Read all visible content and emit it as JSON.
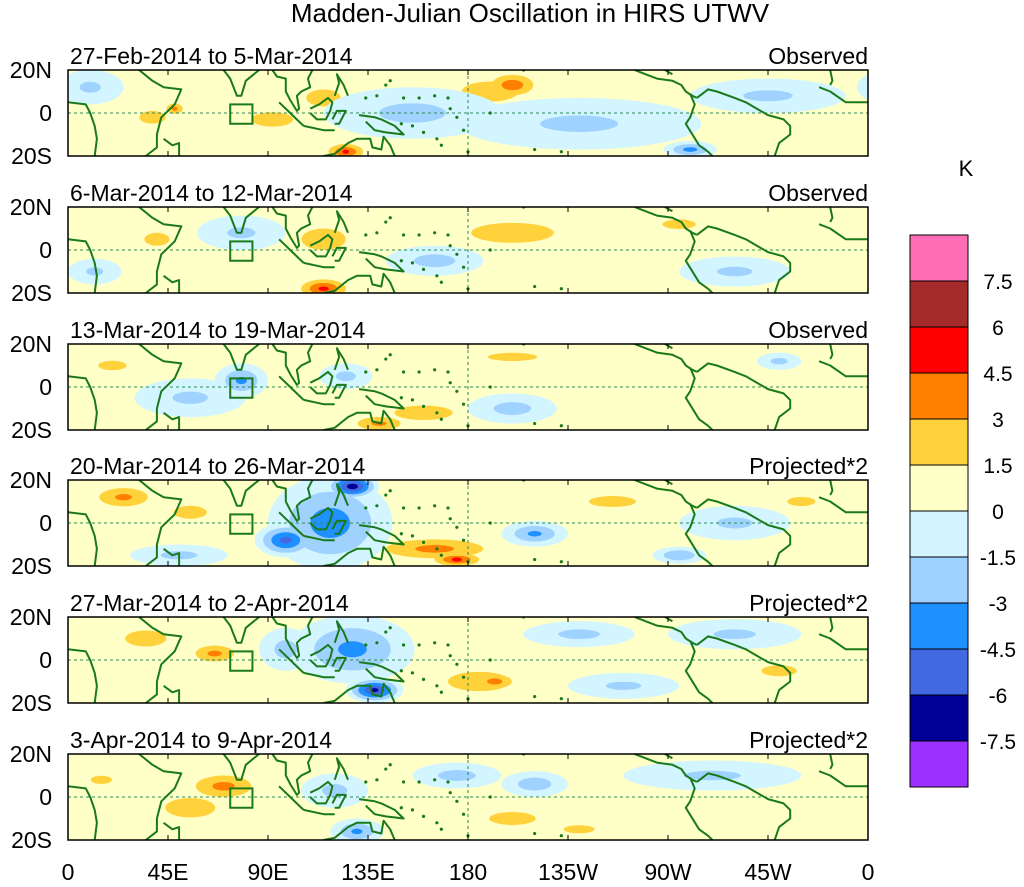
{
  "chart_data": {
    "type": "heatmap",
    "title": "Madden-Julian Oscillation in HIRS UTWV",
    "units": "K",
    "x_ticks": [
      "0",
      "45E",
      "90E",
      "135E",
      "180",
      "135W",
      "90W",
      "45W",
      "0"
    ],
    "y_ticks": [
      "20N",
      "0",
      "20S"
    ],
    "xlim": [
      0,
      360
    ],
    "ylim": [
      -20,
      20
    ],
    "colorbar": {
      "labels": [
        "7.5",
        "6",
        "4.5",
        "3",
        "1.5",
        "0",
        "-1.5",
        "-3",
        "-4.5",
        "-6",
        "-7.5"
      ],
      "colors": [
        "#ff6eb4",
        "#a52a2a",
        "#ff0000",
        "#ff7f00",
        "#ffd23c",
        "#ffffc8",
        "#d2f5ff",
        "#a0d2ff",
        "#1e90ff",
        "#4169e1",
        "#000096",
        "#9b30ff"
      ]
    },
    "panels": [
      {
        "period": "27-Feb-2014 to 5-Mar-2014",
        "kind": "Observed",
        "anomalies": [
          {
            "lon": 200,
            "lat": 13,
            "rlon": 14,
            "rlat": 7,
            "v": 4.0
          },
          {
            "lon": 190,
            "lat": 10,
            "rlon": 30,
            "rlat": 11,
            "v": 2.0
          },
          {
            "lon": 115,
            "lat": 7,
            "rlon": 14,
            "rlat": 7,
            "v": 2.8
          },
          {
            "lon": 125,
            "lat": -18,
            "rlon": 11,
            "rlat": 5,
            "v": 4.6
          },
          {
            "lon": 92,
            "lat": -3,
            "rlon": 22,
            "rlat": 8,
            "v": 2.0
          },
          {
            "lon": 38,
            "lat": -2,
            "rlon": 14,
            "rlat": 7,
            "v": 2.0
          },
          {
            "lon": 48,
            "lat": 2,
            "rlon": 6,
            "rlat": 4,
            "v": 3.2
          },
          {
            "lon": 155,
            "lat": 0,
            "rlon": 40,
            "rlat": 12,
            "v": -1.8
          },
          {
            "lon": 230,
            "lat": -5,
            "rlon": 55,
            "rlat": 12,
            "v": -1.6
          },
          {
            "lon": 280,
            "lat": -17,
            "rlon": 12,
            "rlat": 4,
            "v": -3.5
          },
          {
            "lon": 315,
            "lat": 8,
            "rlon": 35,
            "rlat": 8,
            "v": -1.6
          },
          {
            "lon": 10,
            "lat": 12,
            "rlon": 15,
            "rlat": 8,
            "v": -1.6
          },
          {
            "lon": 250,
            "lat": -3,
            "rlon": 14,
            "rlat": 5,
            "v": 1.8
          }
        ]
      },
      {
        "period": "6-Mar-2014 to 12-Mar-2014",
        "kind": "Observed",
        "anomalies": [
          {
            "lon": 115,
            "lat": 5,
            "rlon": 20,
            "rlat": 10,
            "v": 2.4
          },
          {
            "lon": 115,
            "lat": -18,
            "rlon": 14,
            "rlat": 6,
            "v": 4.8
          },
          {
            "lon": 200,
            "lat": 8,
            "rlon": 40,
            "rlat": 10,
            "v": 2.2
          },
          {
            "lon": 165,
            "lat": -5,
            "rlon": 22,
            "rlat": 7,
            "v": -2.0
          },
          {
            "lon": 78,
            "lat": 8,
            "rlon": 20,
            "rlat": 8,
            "v": -1.6
          },
          {
            "lon": 40,
            "lat": 5,
            "rlon": 15,
            "rlat": 8,
            "v": 1.8
          },
          {
            "lon": 275,
            "lat": 12,
            "rlon": 20,
            "rlat": 6,
            "v": 1.8
          },
          {
            "lon": 300,
            "lat": -10,
            "rlon": 25,
            "rlat": 7,
            "v": -1.6
          },
          {
            "lon": 12,
            "lat": -10,
            "rlon": 12,
            "rlat": 6,
            "v": -1.6
          }
        ]
      },
      {
        "period": "13-Mar-2014 to 19-Mar-2014",
        "kind": "Observed",
        "anomalies": [
          {
            "lon": 78,
            "lat": 3,
            "rlon": 12,
            "rlat": 8,
            "v": -3.2
          },
          {
            "lon": 55,
            "lat": -5,
            "rlon": 25,
            "rlat": 9,
            "v": -1.6
          },
          {
            "lon": 160,
            "lat": -12,
            "rlon": 35,
            "rlat": 9,
            "v": 1.8
          },
          {
            "lon": 140,
            "lat": -17,
            "rlon": 16,
            "rlat": 5,
            "v": 3.2
          },
          {
            "lon": 200,
            "lat": 14,
            "rlon": 35,
            "rlat": 6,
            "v": 1.6
          },
          {
            "lon": 200,
            "lat": -10,
            "rlon": 20,
            "rlat": 7,
            "v": -2.0
          },
          {
            "lon": 125,
            "lat": 5,
            "rlon": 12,
            "rlat": 6,
            "v": -1.8
          },
          {
            "lon": 320,
            "lat": 12,
            "rlon": 10,
            "rlat": 4,
            "v": -1.8
          },
          {
            "lon": 20,
            "lat": 10,
            "rlon": 20,
            "rlat": 7,
            "v": 1.6
          }
        ]
      },
      {
        "period": "20-Mar-2014 to 26-Mar-2014",
        "kind": "Projected*2",
        "anomalies": [
          {
            "lon": 118,
            "lat": 0,
            "rlon": 28,
            "rlat": 22,
            "v": -3.8
          },
          {
            "lon": 128,
            "lat": 17,
            "rlon": 12,
            "rlat": 6,
            "v": -7.0
          },
          {
            "lon": 98,
            "lat": -8,
            "rlon": 14,
            "rlat": 8,
            "v": -5.0
          },
          {
            "lon": 165,
            "lat": -12,
            "rlon": 35,
            "rlat": 7,
            "v": 3.4
          },
          {
            "lon": 175,
            "lat": -17,
            "rlon": 14,
            "rlat": 4,
            "v": 4.8
          },
          {
            "lon": 25,
            "lat": 12,
            "rlon": 18,
            "rlat": 7,
            "v": 3.2
          },
          {
            "lon": 55,
            "lat": 5,
            "rlon": 20,
            "rlat": 8,
            "v": 1.8
          },
          {
            "lon": 210,
            "lat": -5,
            "rlon": 15,
            "rlat": 6,
            "v": -3.2
          },
          {
            "lon": 245,
            "lat": 10,
            "rlon": 25,
            "rlat": 6,
            "v": 2.0
          },
          {
            "lon": 275,
            "lat": -15,
            "rlon": 12,
            "rlat": 4,
            "v": -3.0
          },
          {
            "lon": 330,
            "lat": 10,
            "rlon": 15,
            "rlat": 5,
            "v": 2.0
          },
          {
            "lon": 300,
            "lat": 0,
            "rlon": 25,
            "rlat": 8,
            "v": -1.6
          },
          {
            "lon": 50,
            "lat": -15,
            "rlon": 22,
            "rlat": 5,
            "v": -1.8
          }
        ]
      },
      {
        "period": "27-Mar-2014 to 2-Apr-2014",
        "kind": "Projected*2",
        "anomalies": [
          {
            "lon": 128,
            "lat": 5,
            "rlon": 28,
            "rlat": 16,
            "v": -3.3
          },
          {
            "lon": 138,
            "lat": -14,
            "rlon": 13,
            "rlat": 6,
            "v": -6.3
          },
          {
            "lon": 98,
            "lat": 5,
            "rlon": 12,
            "rlat": 10,
            "v": -2.0
          },
          {
            "lon": 35,
            "lat": 10,
            "rlon": 20,
            "rlat": 8,
            "v": 2.2
          },
          {
            "lon": 66,
            "lat": 3,
            "rlon": 14,
            "rlat": 6,
            "v": 3.3
          },
          {
            "lon": 185,
            "lat": -10,
            "rlon": 28,
            "rlat": 9,
            "v": 2.4
          },
          {
            "lon": 192,
            "lat": -10,
            "rlon": 12,
            "rlat": 5,
            "v": 3.6
          },
          {
            "lon": 230,
            "lat": 12,
            "rlon": 25,
            "rlat": 6,
            "v": -1.8
          },
          {
            "lon": 300,
            "lat": 12,
            "rlon": 30,
            "rlat": 7,
            "v": -1.6
          },
          {
            "lon": 320,
            "lat": -5,
            "rlon": 25,
            "rlat": 8,
            "v": 1.6
          },
          {
            "lon": 250,
            "lat": -12,
            "rlon": 25,
            "rlat": 6,
            "v": -1.6
          }
        ]
      },
      {
        "period": "3-Apr-2014 to 9-Apr-2014",
        "kind": "Projected*2",
        "anomalies": [
          {
            "lon": 70,
            "lat": 5,
            "rlon": 20,
            "rlat": 8,
            "v": 3.4
          },
          {
            "lon": 55,
            "lat": -5,
            "rlon": 30,
            "rlat": 12,
            "v": 1.8
          },
          {
            "lon": 130,
            "lat": -16,
            "rlon": 12,
            "rlat": 6,
            "v": -3.2
          },
          {
            "lon": 120,
            "lat": 3,
            "rlon": 15,
            "rlat": 8,
            "v": -1.8
          },
          {
            "lon": 175,
            "lat": 10,
            "rlon": 20,
            "rlat": 6,
            "v": -2.0
          },
          {
            "lon": 210,
            "lat": 6,
            "rlon": 15,
            "rlat": 6,
            "v": -2.4
          },
          {
            "lon": 200,
            "lat": -10,
            "rlon": 28,
            "rlat": 8,
            "v": 1.8
          },
          {
            "lon": 230,
            "lat": -15,
            "rlon": 15,
            "rlat": 4,
            "v": 2.2
          },
          {
            "lon": 290,
            "lat": 10,
            "rlon": 40,
            "rlat": 7,
            "v": -1.6
          },
          {
            "lon": 15,
            "lat": 8,
            "rlon": 15,
            "rlat": 6,
            "v": 1.6
          }
        ]
      }
    ]
  }
}
